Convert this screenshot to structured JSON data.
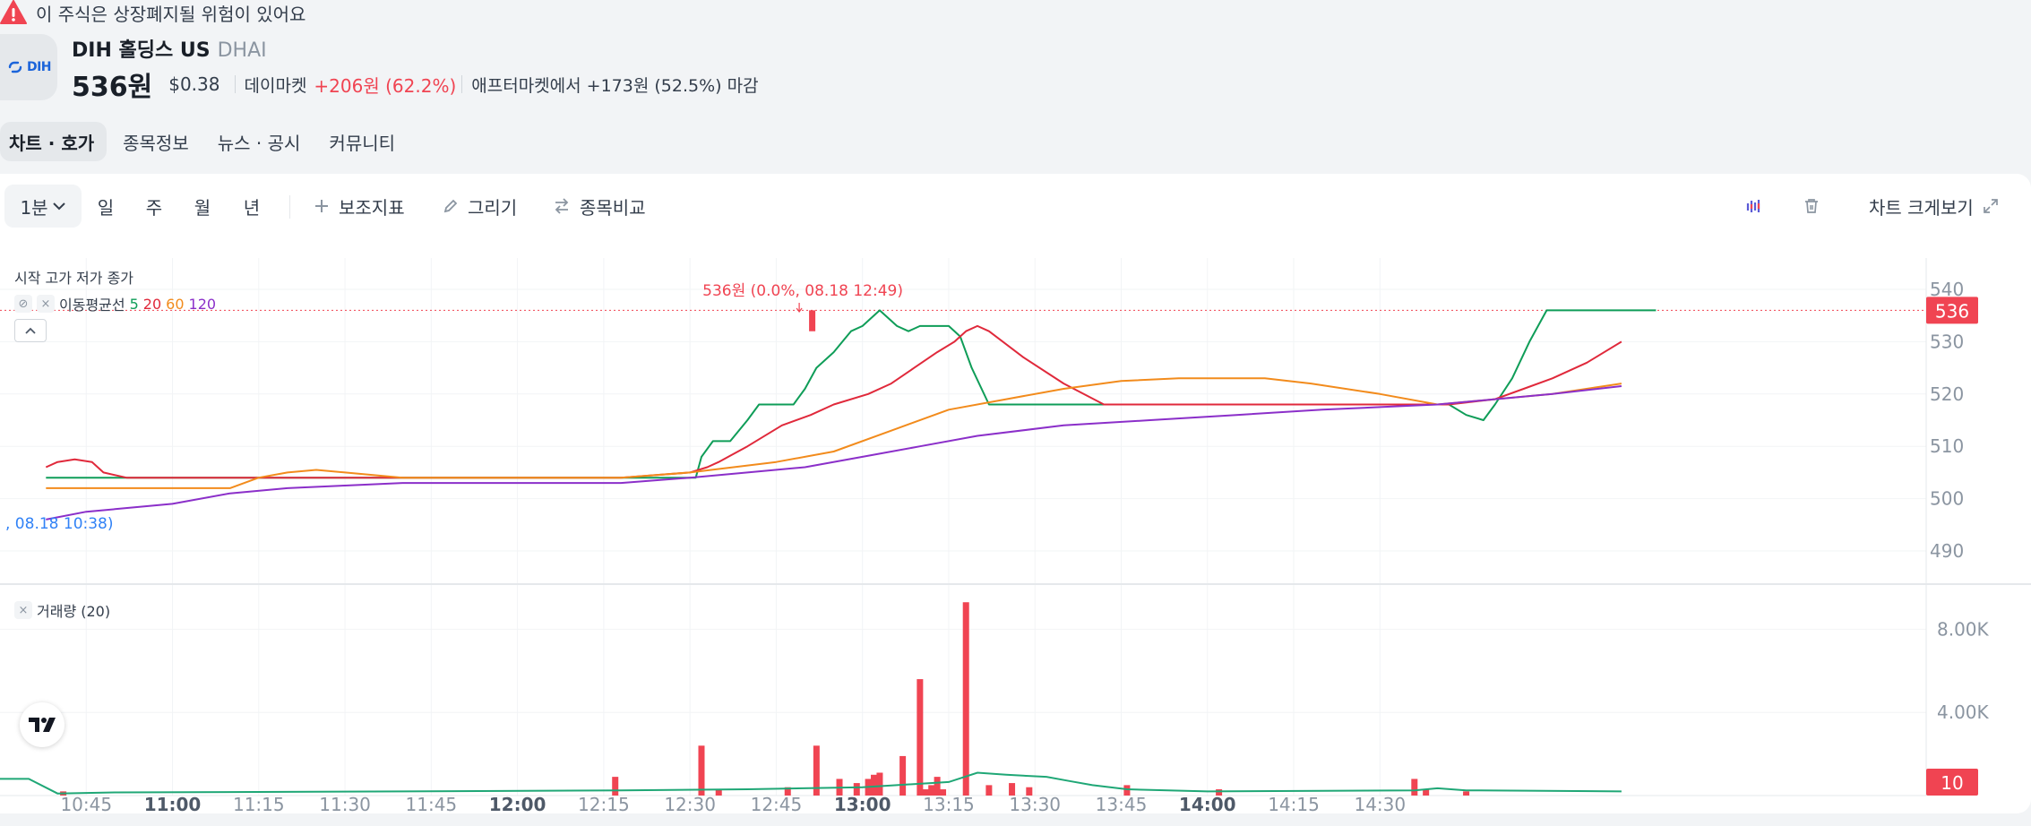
{
  "warning": {
    "text": "이 주식은 상장폐지될 위험이 있어요"
  },
  "stock": {
    "logo_text": "DIH",
    "name": "DIH 홀딩스 US",
    "ticker": "DHAI",
    "price": "536원",
    "usd_price": "$0.38",
    "market_label": "데이마켓",
    "change": "+206원 (62.2%)",
    "after_market": "애프터마켓에서 +173원 (52.5%) 마감"
  },
  "tabs": [
    {
      "label": "차트 · 호가",
      "active": true
    },
    {
      "label": "종목정보"
    },
    {
      "label": "뉴스 · 공시"
    },
    {
      "label": "커뮤니티"
    }
  ],
  "toolbar": {
    "interval": "1분",
    "timeframes": [
      "일",
      "주",
      "월",
      "년"
    ],
    "indicator_label": "보조지표",
    "draw_label": "그리기",
    "compare_label": "종목비교",
    "expand_label": "차트 크게보기",
    "icons": [
      "plus-icon",
      "pencil-icon",
      "swap-icon",
      "bar-settings-icon",
      "trash-icon",
      "expand-icon"
    ]
  },
  "legend": {
    "ohlc": "시작 고가 저가 종가",
    "ma_label": "이동평균선",
    "ma_periods": [
      "5",
      "20",
      "60",
      "120"
    ],
    "volume_label": "거래량 (20)"
  },
  "colors": {
    "up": "#f04452",
    "ma5": "#0f9d58",
    "ma20": "#e0293b",
    "ma60": "#f28b1c",
    "ma120": "#8b2fc9",
    "volume_ma": "#1fa776",
    "accent": "#1b64da"
  },
  "chart_data": {
    "type": "line",
    "price_axis_ticks": [
      540,
      530,
      520,
      510,
      500,
      490
    ],
    "volume_axis_ticks": [
      "8.00K",
      "4.00K"
    ],
    "x_ticks": [
      {
        "label": "10:45",
        "bold": false
      },
      {
        "label": "11:00",
        "bold": true
      },
      {
        "label": "11:15",
        "bold": false
      },
      {
        "label": "11:30",
        "bold": false
      },
      {
        "label": "11:45",
        "bold": false
      },
      {
        "label": "12:00",
        "bold": true
      },
      {
        "label": "12:15",
        "bold": false
      },
      {
        "label": "12:30",
        "bold": false
      },
      {
        "label": "12:45",
        "bold": false
      },
      {
        "label": "13:00",
        "bold": true
      },
      {
        "label": "13:15",
        "bold": false
      },
      {
        "label": "13:30",
        "bold": false
      },
      {
        "label": "13:45",
        "bold": false
      },
      {
        "label": "14:00",
        "bold": true
      },
      {
        "label": "14:15",
        "bold": false
      },
      {
        "label": "14:30",
        "bold": false
      }
    ],
    "ylim": [
      484,
      546
    ],
    "volume_ylim": [
      0,
      10000
    ],
    "current_price_label": "536",
    "current_price": 536,
    "current_volume_label": "10",
    "high_annotation": "536원 (0.0%, 08.18 12:49)",
    "high_annotation_time": 769,
    "low_annotation": ", 08.18 10:38)",
    "series": [
      {
        "name": "5",
        "color": "#0f9d58",
        "points": [
          [
            638,
            504
          ],
          [
            738,
            504
          ],
          [
            740,
            504
          ],
          [
            750,
            504
          ],
          [
            751,
            504
          ],
          [
            752,
            508
          ],
          [
            754,
            511
          ],
          [
            757,
            511
          ],
          [
            760,
            515
          ],
          [
            762,
            518
          ],
          [
            765,
            518
          ],
          [
            768,
            518
          ],
          [
            770,
            521
          ],
          [
            772,
            525
          ],
          [
            775,
            528
          ],
          [
            778,
            532
          ],
          [
            780,
            533
          ],
          [
            783,
            536
          ],
          [
            786,
            533
          ],
          [
            788,
            532
          ],
          [
            790,
            533
          ],
          [
            793,
            533
          ],
          [
            795,
            533
          ],
          [
            797,
            531
          ],
          [
            799,
            525
          ],
          [
            802,
            518
          ],
          [
            806,
            518
          ],
          [
            820,
            518
          ],
          [
            840,
            518
          ],
          [
            860,
            518
          ],
          [
            882,
            518
          ],
          [
            885,
            516
          ],
          [
            888,
            515
          ],
          [
            890,
            518
          ],
          [
            893,
            523
          ],
          [
            896,
            530
          ],
          [
            899,
            536
          ],
          [
            918,
            536
          ]
        ]
      },
      {
        "name": "20",
        "color": "#e0293b",
        "points": [
          [
            638,
            506
          ],
          [
            640,
            507
          ],
          [
            643,
            507.5
          ],
          [
            646,
            507
          ],
          [
            648,
            505
          ],
          [
            652,
            504
          ],
          [
            738,
            504
          ],
          [
            750,
            505
          ],
          [
            753,
            506
          ],
          [
            755,
            507
          ],
          [
            760,
            510
          ],
          [
            766,
            514
          ],
          [
            771,
            516
          ],
          [
            775,
            518
          ],
          [
            781,
            520
          ],
          [
            785,
            522
          ],
          [
            789,
            525
          ],
          [
            793,
            528
          ],
          [
            796,
            530
          ],
          [
            798,
            532
          ],
          [
            800,
            533
          ],
          [
            802,
            532
          ],
          [
            808,
            527
          ],
          [
            815,
            522
          ],
          [
            822,
            518
          ],
          [
            832,
            518
          ],
          [
            882,
            518
          ],
          [
            890,
            519
          ],
          [
            895,
            521
          ],
          [
            900,
            523
          ],
          [
            906,
            526
          ],
          [
            912,
            530
          ]
        ]
      },
      {
        "name": "60",
        "color": "#f28b1c",
        "points": [
          [
            638,
            502
          ],
          [
            660,
            502
          ],
          [
            670,
            502
          ],
          [
            675,
            504
          ],
          [
            680,
            505
          ],
          [
            685,
            505.5
          ],
          [
            690,
            505
          ],
          [
            700,
            504
          ],
          [
            738,
            504
          ],
          [
            750,
            505
          ],
          [
            765,
            507
          ],
          [
            775,
            509
          ],
          [
            785,
            513
          ],
          [
            795,
            517
          ],
          [
            805,
            519
          ],
          [
            815,
            521
          ],
          [
            825,
            522.5
          ],
          [
            835,
            523
          ],
          [
            850,
            523
          ],
          [
            858,
            522
          ],
          [
            870,
            520
          ],
          [
            880,
            518
          ],
          [
            890,
            519
          ],
          [
            900,
            520
          ],
          [
            912,
            522
          ]
        ]
      },
      {
        "name": "120",
        "color": "#8b2fc9",
        "points": [
          [
            638,
            496
          ],
          [
            645,
            497.5
          ],
          [
            650,
            498
          ],
          [
            660,
            499
          ],
          [
            670,
            501
          ],
          [
            680,
            502
          ],
          [
            690,
            502.5
          ],
          [
            700,
            503
          ],
          [
            738,
            503
          ],
          [
            750,
            504
          ],
          [
            760,
            505
          ],
          [
            770,
            506
          ],
          [
            780,
            508
          ],
          [
            790,
            510
          ],
          [
            800,
            512
          ],
          [
            815,
            514
          ],
          [
            830,
            515
          ],
          [
            845,
            516
          ],
          [
            860,
            517
          ],
          [
            870,
            517.5
          ],
          [
            880,
            518
          ],
          [
            890,
            519
          ],
          [
            900,
            520
          ],
          [
            912,
            521.5
          ]
        ]
      }
    ],
    "volume_bars": [
      {
        "t": 641,
        "v": 200
      },
      {
        "t": 737,
        "v": 900
      },
      {
        "t": 752,
        "v": 2400
      },
      {
        "t": 755,
        "v": 300
      },
      {
        "t": 767,
        "v": 400
      },
      {
        "t": 772,
        "v": 2400
      },
      {
        "t": 776,
        "v": 800
      },
      {
        "t": 779,
        "v": 600
      },
      {
        "t": 781,
        "v": 800
      },
      {
        "t": 782,
        "v": 1000
      },
      {
        "t": 783,
        "v": 1100
      },
      {
        "t": 787,
        "v": 1900
      },
      {
        "t": 790,
        "v": 5600
      },
      {
        "t": 791,
        "v": 300
      },
      {
        "t": 792,
        "v": 500
      },
      {
        "t": 793,
        "v": 900
      },
      {
        "t": 794,
        "v": 300
      },
      {
        "t": 798,
        "v": 9300
      },
      {
        "t": 802,
        "v": 500
      },
      {
        "t": 806,
        "v": 600
      },
      {
        "t": 809,
        "v": 400
      },
      {
        "t": 826,
        "v": 500
      },
      {
        "t": 842,
        "v": 300
      },
      {
        "t": 876,
        "v": 800
      },
      {
        "t": 878,
        "v": 300
      },
      {
        "t": 885,
        "v": 200
      }
    ],
    "volume_ma": [
      [
        630,
        800
      ],
      [
        635,
        800
      ],
      [
        640,
        100
      ],
      [
        650,
        150
      ],
      [
        700,
        200
      ],
      [
        738,
        250
      ],
      [
        760,
        300
      ],
      [
        780,
        400
      ],
      [
        795,
        650
      ],
      [
        800,
        1100
      ],
      [
        805,
        1000
      ],
      [
        812,
        900
      ],
      [
        816,
        700
      ],
      [
        820,
        500
      ],
      [
        826,
        300
      ],
      [
        840,
        200
      ],
      [
        876,
        250
      ],
      [
        880,
        350
      ],
      [
        885,
        250
      ],
      [
        912,
        200
      ]
    ]
  }
}
